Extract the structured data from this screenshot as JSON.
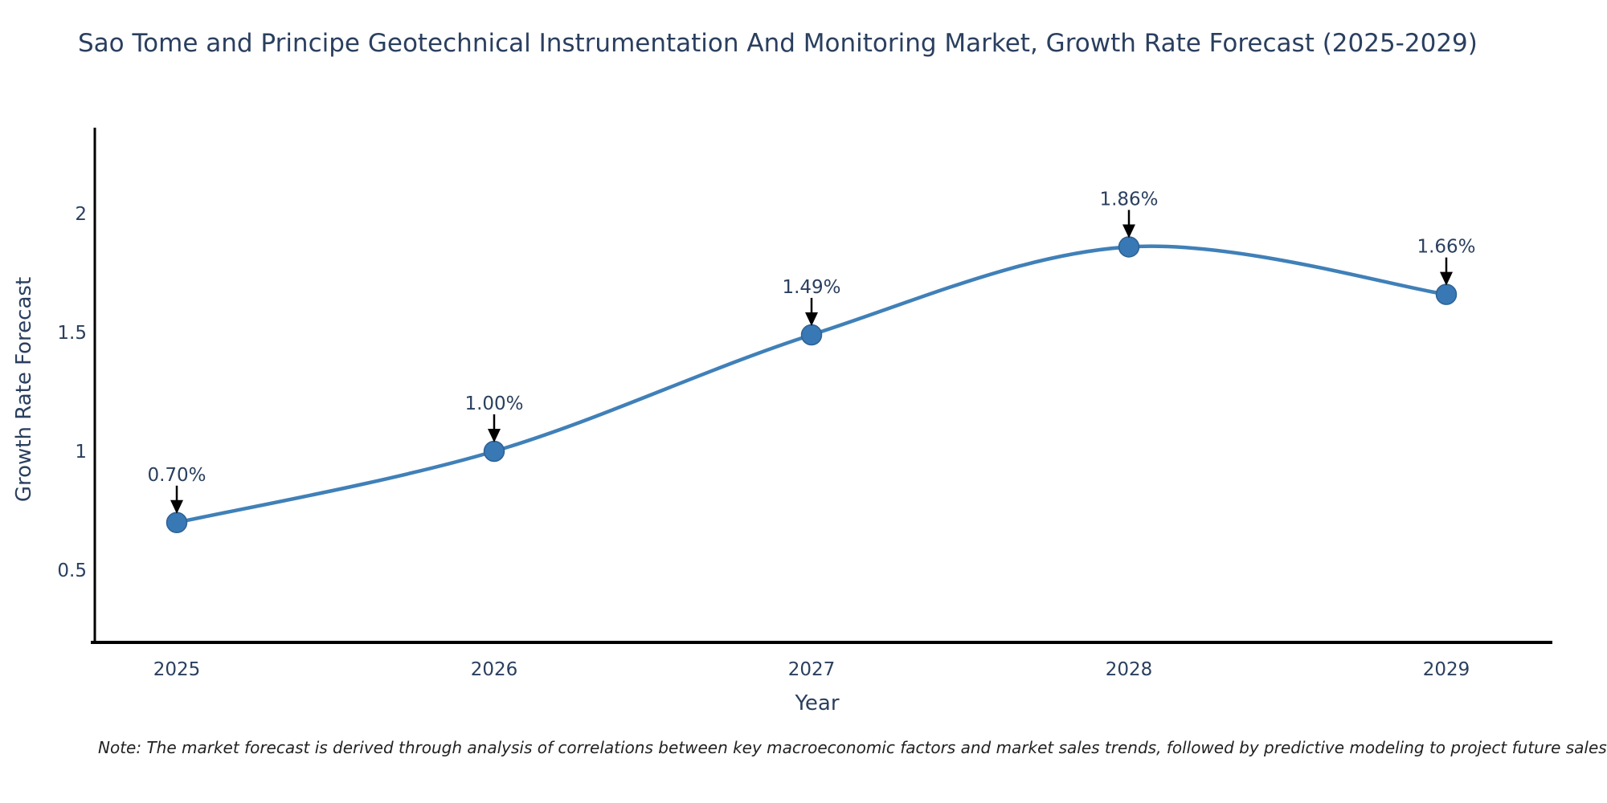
{
  "title": "Sao Tome and Principe Geotechnical Instrumentation And Monitoring Market, Growth Rate Forecast (2025-2029)",
  "note": "Note: The market forecast is derived through analysis of correlations between key macroeconomic factors and market sales trends, followed by predictive modeling to project future sales",
  "chart_data": {
    "type": "line",
    "title": "Sao Tome and Principe Geotechnical Instrumentation And Monitoring Market, Growth Rate Forecast (2025-2029)",
    "x": [
      "2025",
      "2026",
      "2027",
      "2028",
      "2029"
    ],
    "values": [
      0.7,
      1.0,
      1.49,
      1.86,
      1.66
    ],
    "point_labels": [
      "0.70%",
      "1.00%",
      "1.49%",
      "1.86%",
      "1.66%"
    ],
    "xlabel": "Year",
    "ylabel": "Growth Rate Forecast",
    "yticks": {
      "values": [
        0.5,
        1,
        1.5,
        2
      ],
      "labels": [
        "0.5",
        "1",
        "1.5",
        "2"
      ]
    },
    "ylim": [
      0.2,
      2.36
    ],
    "grid": false,
    "legend": false,
    "curve": "spline",
    "annotations_have_arrows": true,
    "colors": {
      "line": "#4080b8",
      "marker": "#3878b5",
      "marker_edge": "#2e6193",
      "text": "#2a3f5f",
      "axis": "#000000",
      "arrow": "#000000",
      "note_text": "#222222"
    }
  }
}
